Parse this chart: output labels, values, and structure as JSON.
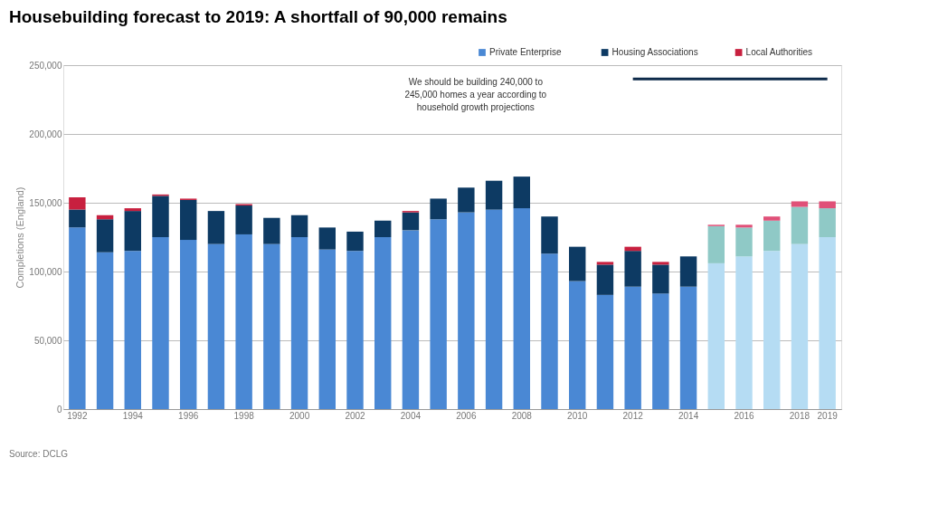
{
  "chart_data": {
    "type": "bar",
    "stacked": true,
    "title": "Housebuilding forecast to 2019: A shortfall of 90,000 remains",
    "ylabel": "Completions (England)",
    "categories": [
      "1992",
      null,
      "1994",
      null,
      "1996",
      null,
      "1998",
      null,
      "2000",
      null,
      "2002",
      null,
      "2004",
      null,
      "2006",
      null,
      "2008",
      null,
      "2010",
      null,
      "2012",
      null,
      "2014",
      null,
      "2016",
      null,
      "2018",
      "2019"
    ],
    "series": [
      {
        "name": "Private Enterprise",
        "color": "#4a88d4",
        "colors": [
          "#4a88d4",
          "#4a88d4",
          "#4a88d4",
          "#4a88d4",
          "#4a88d4",
          "#4a88d4",
          "#4a88d4",
          "#4a88d4",
          "#4a88d4",
          "#4a88d4",
          "#4a88d4",
          "#4a88d4",
          "#4a88d4",
          "#4a88d4",
          "#4a88d4",
          "#4a88d4",
          "#4a88d4",
          "#4a88d4",
          "#4a88d4",
          "#4a88d4",
          "#4a88d4",
          "#4a88d4",
          "#4a88d4",
          "#b5dcf3",
          "#b5dcf3",
          "#b5dcf3",
          "#b5dcf3",
          "#b5dcf3"
        ],
        "values": [
          132000,
          114000,
          115000,
          125000,
          123000,
          120000,
          127000,
          120000,
          125000,
          116000,
          115000,
          125000,
          130000,
          138000,
          143000,
          145000,
          146000,
          113000,
          93000,
          83000,
          89000,
          84000,
          89000,
          106000,
          111000,
          115000,
          120000,
          125000
        ]
      },
      {
        "name": "Housing Associations",
        "color": "#0d3a63",
        "colors": [
          "#0d3a63",
          "#0d3a63",
          "#0d3a63",
          "#0d3a63",
          "#0d3a63",
          "#0d3a63",
          "#0d3a63",
          "#0d3a63",
          "#0d3a63",
          "#0d3a63",
          "#0d3a63",
          "#0d3a63",
          "#0d3a63",
          "#0d3a63",
          "#0d3a63",
          "#0d3a63",
          "#0d3a63",
          "#0d3a63",
          "#0d3a63",
          "#0d3a63",
          "#0d3a63",
          "#0d3a63",
          "#0d3a63",
          "#8fc9c6",
          "#8fc9c6",
          "#8fc9c6",
          "#8fc9c6",
          "#8fc9c6"
        ],
        "values": [
          13000,
          24000,
          29000,
          30000,
          29000,
          24000,
          21000,
          19000,
          16000,
          16000,
          14000,
          12000,
          13000,
          15000,
          18000,
          21000,
          23000,
          27000,
          25000,
          22000,
          26000,
          21000,
          22000,
          27000,
          21000,
          22000,
          27000,
          21000
        ]
      },
      {
        "name": "Local Authorities",
        "color": "#c8203f",
        "colors": [
          "#c8203f",
          "#c8203f",
          "#c8203f",
          "#c8203f",
          "#c8203f",
          "#c8203f",
          "#c8203f",
          "#c8203f",
          "#c8203f",
          "#c8203f",
          "#c8203f",
          "#c8203f",
          "#c8203f",
          "#c8203f",
          "#c8203f",
          "#c8203f",
          "#c8203f",
          "#c8203f",
          "#c8203f",
          "#c8203f",
          "#c8203f",
          "#c8203f",
          "#c8203f",
          "#e05078",
          "#e05078",
          "#e05078",
          "#e05078",
          "#e05078"
        ],
        "values": [
          9000,
          3000,
          2000,
          1000,
          1000,
          0,
          1000,
          0,
          0,
          0,
          0,
          0,
          1000,
          0,
          0,
          0,
          0,
          0,
          0,
          2000,
          3000,
          2000,
          0,
          1000,
          2000,
          3000,
          4000,
          5000
        ]
      },
      {
        "type": "line",
        "color": "#0d2a4a",
        "values": [
          null,
          null,
          null,
          null,
          null,
          null,
          null,
          null,
          null,
          null,
          null,
          null,
          null,
          null,
          null,
          null,
          null,
          null,
          null,
          null,
          240000,
          240000,
          240000,
          240000,
          240000,
          240000,
          240000,
          240000
        ]
      }
    ],
    "ylim": [
      0,
      250000
    ],
    "yticks": [
      0,
      {
        "value": 50000,
        "label": "50,000"
      },
      {
        "value": 100000,
        "label": "100,000"
      },
      {
        "value": 150000,
        "label": "150,000"
      },
      {
        "value": 200000,
        "label": "200,000"
      },
      {
        "value": 250000,
        "label": "250,000"
      }
    ],
    "grid": "y",
    "legend": "top right",
    "annotations": [
      "We should be building 240,000 to 245,000 homes a year according to household growth projections",
      "Source: DCLG"
    ]
  }
}
